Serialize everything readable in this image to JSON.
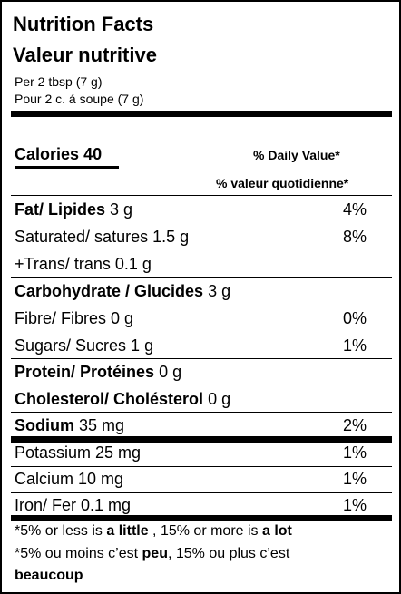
{
  "header": {
    "title_en": "Nutrition Facts",
    "title_fr": "Valeur nutritive",
    "serving_en": "Per 2 tbsp (7 g)",
    "serving_fr": "Pour 2 c. á soupe (7 g)"
  },
  "calories": {
    "label": "Calories",
    "value": "40",
    "dv_en": "% Daily Value*",
    "dv_fr": "% valeur quotidienne*"
  },
  "nutrients": {
    "fat": {
      "label": "Fat/ Lipides",
      "amount": "3 g",
      "pct": "4%"
    },
    "saturated": {
      "label": "Saturated/ satures 1.5 g",
      "pct": "8%"
    },
    "trans": {
      "label": "+Trans/ trans 0.1 g"
    },
    "carbohydrate": {
      "label": "Carbohydrate / Glucides",
      "amount": "3 g"
    },
    "fibre": {
      "label": "Fibre/ Fibres 0 g",
      "pct": "0%"
    },
    "sugars": {
      "label": "Sugars/ Sucres 1 g",
      "pct": "1%"
    },
    "protein": {
      "label": "Protein/ Protéines",
      "amount": "0 g"
    },
    "cholesterol": {
      "label": "Cholesterol/ Cholésterol",
      "amount": "0 g"
    },
    "sodium": {
      "label": "Sodium",
      "amount": "35 mg",
      "pct": "2%"
    },
    "potassium": {
      "label": "Potassium 25 mg",
      "pct": "1%"
    },
    "calcium": {
      "label": "Calcium 10 mg",
      "pct": "1%"
    },
    "iron": {
      "label": "Iron/ Fer 0.1 mg",
      "pct": "1%"
    }
  },
  "footnote": {
    "en_prefix": "*5% or less is ",
    "en_little": "a little",
    "en_mid": " , 15% or more is ",
    "en_lot": "a lot",
    "fr_prefix": "*5% ou moins c’est ",
    "fr_peu": "peu",
    "fr_mid": ", 15% ou plus c’est",
    "fr_beaucoup": "beaucoup"
  }
}
